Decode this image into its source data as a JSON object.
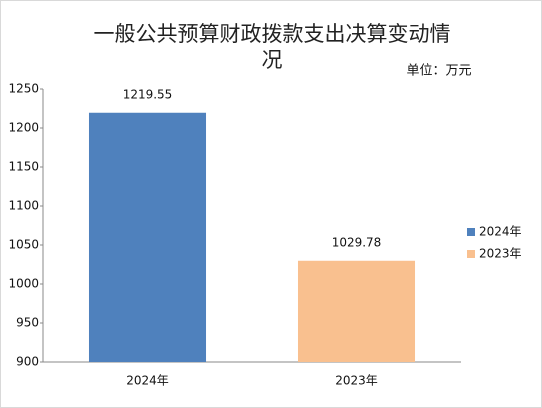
{
  "chart_data": {
    "type": "bar",
    "title": "一般公共预算财政拨款支出决算变动情况",
    "subtitle": "单位：万元",
    "categories": [
      "2024年",
      "2023年"
    ],
    "series": [
      {
        "name": "2024年",
        "color": "#4f81bd",
        "values": [
          1219.55,
          null
        ]
      },
      {
        "name": "2023年",
        "color": "#f9c08f",
        "values": [
          null,
          1029.78
        ]
      }
    ],
    "ylim": [
      900,
      1250
    ],
    "yticks": [
      900,
      950,
      1000,
      1050,
      1100,
      1150,
      1200,
      1250
    ],
    "grid": false,
    "legend": "right"
  }
}
